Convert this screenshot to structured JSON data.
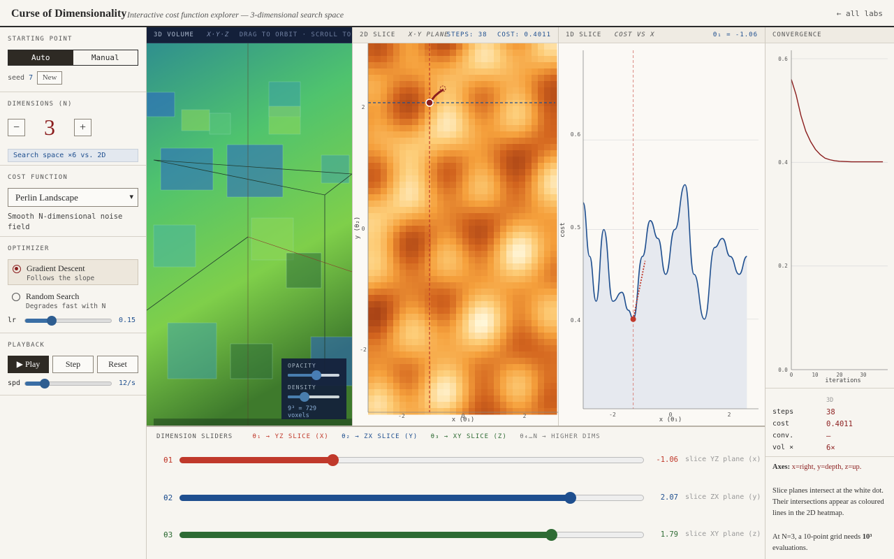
{
  "header": {
    "title": "Curse of Dimensionality",
    "subtitle": "Interactive cost function explorer — 3-dimensional search space",
    "back_link": "← all labs"
  },
  "sidebar": {
    "starting_point": {
      "label": "STARTING POINT",
      "modes": [
        "Auto",
        "Manual"
      ],
      "active_mode": "Auto",
      "seed_label": "seed",
      "seed_value": "7",
      "new_button": "New"
    },
    "dimensions": {
      "label": "DIMENSIONS (N)",
      "minus": "−",
      "plus": "+",
      "value": "3",
      "note": "Search space ×6 vs. 2D"
    },
    "cost_function": {
      "label": "COST FUNCTION",
      "selected": "Perlin Landscape",
      "description": "Smooth N-dimensional noise field"
    },
    "optimizer": {
      "label": "OPTIMIZER",
      "options": [
        {
          "name": "Gradient Descent",
          "desc": "Follows the slope",
          "selected": true
        },
        {
          "name": "Random Search",
          "desc": "Degrades fast with N",
          "selected": false
        }
      ],
      "lr_label": "lr",
      "lr_value": "0.15",
      "lr_fraction": 0.3
    },
    "playback": {
      "label": "PLAYBACK",
      "play": "▶ Play",
      "step": "Step",
      "reset": "Reset",
      "speed_label": "spd",
      "speed_value": "12/s",
      "speed_fraction": 0.22
    }
  },
  "panel3d": {
    "title": "3D VOLUME",
    "axes": "X·Y·Z",
    "hint": "DRAG TO ORBIT · SCROLL TO ZOOM",
    "opacity_label": "OPACITY",
    "opacity_fraction": 0.55,
    "density_label": "DENSITY",
    "density_fraction": 0.33,
    "voxel_text": "9³ = 729 voxels"
  },
  "panel2d": {
    "title": "2D SLICE",
    "plane": "X·Y PLANE",
    "steps_label": "STEPS:",
    "steps": "38",
    "cost_label": "COST:",
    "cost": "0.4011",
    "xlabel": "x (θ₁)",
    "ylabel": "y (θ₂)",
    "xticks": [
      "-2",
      "0",
      "2"
    ],
    "yticks": [
      "2",
      "0",
      "-2"
    ]
  },
  "panel1d": {
    "title": "1D SLICE",
    "curve": "COST VS X",
    "readout": "θ₁ = -1.06",
    "xlabel": "x (θ₁)",
    "ylabel": "cost",
    "xticks": [
      "-2",
      "0",
      "2"
    ],
    "yticks": [
      "0.6",
      "0.5",
      "0.4"
    ]
  },
  "convergence": {
    "title": "CONVERGENCE",
    "xlabel": "iterations",
    "xticks": [
      "0",
      "10",
      "20",
      "30"
    ],
    "yticks": [
      "0.6",
      "0.4",
      "0.2",
      "0.0"
    ],
    "stats_header": "3D",
    "stats": [
      {
        "k": "steps",
        "v": "38"
      },
      {
        "k": "cost",
        "v": "0.4011"
      },
      {
        "k": "conv.",
        "v": "—"
      },
      {
        "k": "vol ×",
        "v": "6×"
      }
    ]
  },
  "notes": {
    "axes_title": "Axes:",
    "axes_text": "x=right, y=depth, z=up.",
    "p2": "Slice planes intersect at the white dot. Their intersections appear as coloured lines in the 2D heatmap.",
    "p3a": "At N=3, a 10-point grid needs",
    "p3b": "10³",
    "p3c": "evaluations."
  },
  "dims": {
    "header": "DIMENSION SLIDERS",
    "legend": [
      {
        "text": "θ₁ → YZ SLICE (X)",
        "color": "#c0392b"
      },
      {
        "text": "θ₂ → ZX SLICE (Y)",
        "color": "#1f4f8f"
      },
      {
        "text": "θ₃ → XY SLICE (Z)",
        "color": "#2e6b34"
      },
      {
        "text": "θ₄…N → HIGHER DIMS",
        "color": "#777"
      }
    ],
    "rows": [
      {
        "label": "θ1",
        "value": "-1.06",
        "plane": "slice YZ plane (x)",
        "fraction": 0.33,
        "color": "#c0392b"
      },
      {
        "label": "θ2",
        "value": "2.07",
        "plane": "slice ZX plane (y)",
        "fraction": 0.84,
        "color": "#1f4f8f"
      },
      {
        "label": "θ3",
        "value": "1.79",
        "plane": "slice XY plane (z)",
        "fraction": 0.8,
        "color": "#2e6b34"
      }
    ]
  },
  "chart_data": [
    {
      "type": "line",
      "title": "",
      "xlabel": "x (θ₁)",
      "ylabel": "cost",
      "xlim": [
        -3,
        3.8
      ],
      "ylim": [
        0.3,
        0.7
      ],
      "x": [
        -3.0,
        -2.75,
        -2.5,
        -2.2,
        -1.85,
        -1.5,
        -1.25,
        -1.06,
        -0.7,
        -0.4,
        -0.1,
        0.2,
        0.55,
        0.95,
        1.3,
        1.7,
        2.1,
        2.4,
        2.7,
        3.05,
        3.35
      ],
      "y": [
        0.53,
        0.47,
        0.42,
        0.5,
        0.42,
        0.43,
        0.41,
        0.4,
        0.47,
        0.51,
        0.49,
        0.45,
        0.5,
        0.55,
        0.45,
        0.4,
        0.48,
        0.49,
        0.47,
        0.45,
        0.47
      ]
    },
    {
      "type": "line",
      "title": "",
      "xlabel": "iterations",
      "ylabel": "",
      "xlim": [
        0,
        40
      ],
      "ylim": [
        0,
        0.6
      ],
      "x": [
        0,
        2,
        4,
        6,
        8,
        10,
        12,
        14,
        16,
        18,
        20,
        25,
        30,
        38
      ],
      "y": [
        0.56,
        0.53,
        0.49,
        0.46,
        0.44,
        0.425,
        0.415,
        0.408,
        0.405,
        0.403,
        0.402,
        0.401,
        0.4011,
        0.4011
      ]
    }
  ]
}
